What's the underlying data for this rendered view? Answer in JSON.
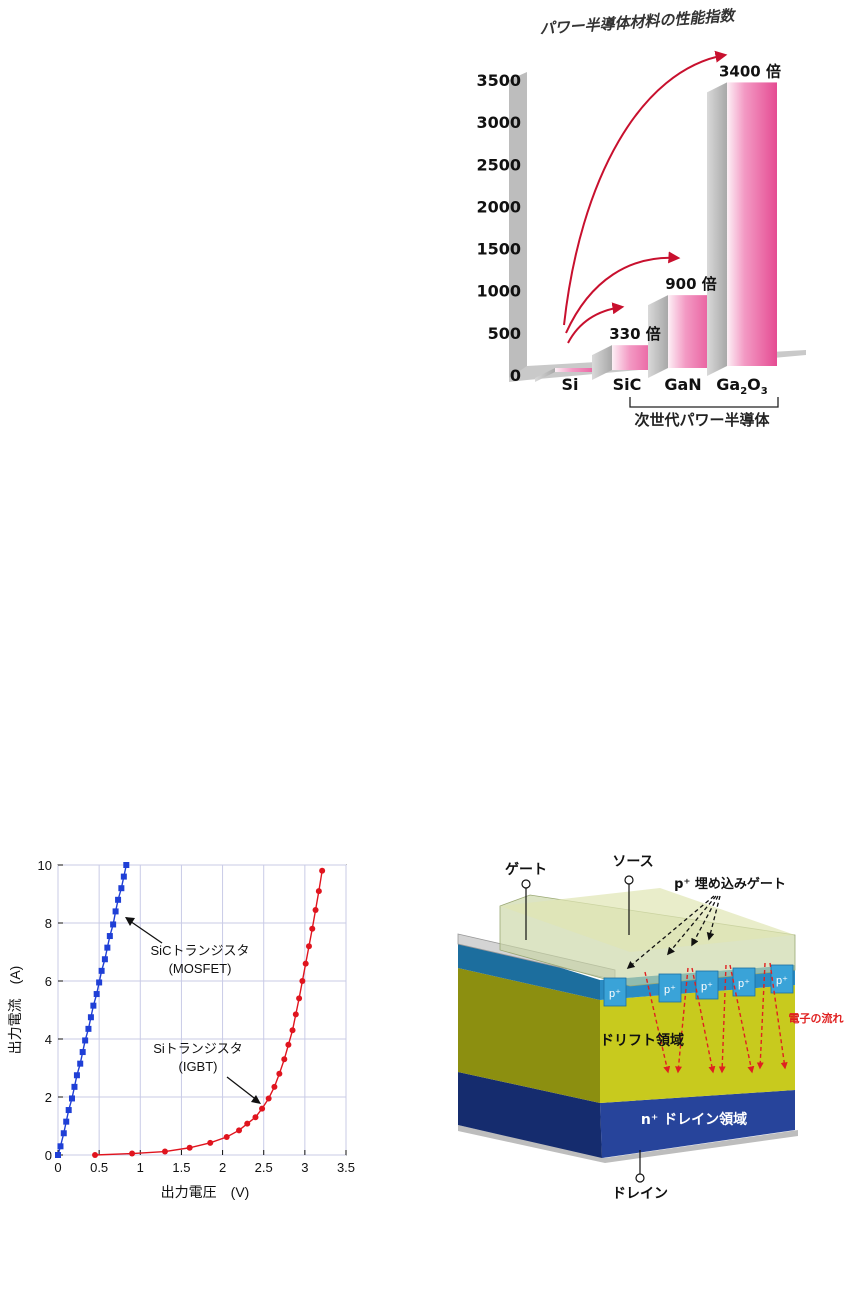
{
  "chart_data": [
    {
      "type": "bar",
      "title": "パワー半導体材料の性能指数",
      "categories": [
        "Si",
        "SiC",
        "GaN",
        "Ga2O3"
      ],
      "category_labels": [
        {
          "main": "Si",
          "sub": ""
        },
        {
          "main": "SiC",
          "sub": ""
        },
        {
          "main": "GaN",
          "sub": ""
        },
        {
          "main": "Ga",
          "sub": "2",
          "main2": "O",
          "sub2": "3"
        }
      ],
      "values": [
        1,
        330,
        900,
        3400
      ],
      "data_labels": [
        "",
        "330 倍",
        "900 倍",
        "3400 倍"
      ],
      "yticks": [
        "0",
        "500",
        "1000",
        "1500",
        "2000",
        "2500",
        "3000",
        "3500"
      ],
      "ylim": [
        0,
        3500
      ],
      "bracket_label": "次世代パワー半導体",
      "colors": {
        "bar": "#e8559a",
        "wall": "#b9b9b9"
      }
    },
    {
      "type": "line",
      "xlabel": "出力電圧　(V)",
      "ylabel": "出力電流　(A)",
      "xlim": [
        0,
        3.5
      ],
      "ylim": [
        0,
        10
      ],
      "xticks": [
        "0",
        "0.5",
        "1",
        "1.5",
        "2",
        "2.5",
        "3",
        "3.5"
      ],
      "yticks": [
        "0",
        "2",
        "4",
        "6",
        "8",
        "10"
      ],
      "grid": true,
      "series": [
        {
          "name": "SiCトランジスタ\n(MOSFET)",
          "label_line1": "SiCトランジスタ",
          "label_line2": "(MOSFET)",
          "color": "#1f3fd6",
          "marker": "square",
          "x": [
            0,
            0.03,
            0.07,
            0.1,
            0.13,
            0.17,
            0.2,
            0.23,
            0.27,
            0.3,
            0.33,
            0.37,
            0.4,
            0.43,
            0.47,
            0.5,
            0.53,
            0.57,
            0.6,
            0.63,
            0.67,
            0.7,
            0.73,
            0.77,
            0.8,
            0.83
          ],
          "y": [
            0,
            0.3,
            0.75,
            1.15,
            1.55,
            1.95,
            2.35,
            2.75,
            3.15,
            3.55,
            3.95,
            4.35,
            4.75,
            5.15,
            5.55,
            5.95,
            6.35,
            6.75,
            7.15,
            7.55,
            7.95,
            8.4,
            8.8,
            9.2,
            9.6,
            10.0
          ]
        },
        {
          "name": "Siトランジスタ\n(IGBT)",
          "label_line1": "Siトランジスタ",
          "label_line2": "(IGBT)",
          "color": "#e0141e",
          "marker": "circle",
          "x": [
            0.45,
            0.9,
            1.3,
            1.6,
            1.85,
            2.05,
            2.2,
            2.3,
            2.4,
            2.48,
            2.56,
            2.63,
            2.69,
            2.75,
            2.8,
            2.85,
            2.89,
            2.93,
            2.97,
            3.01,
            3.05,
            3.09,
            3.13,
            3.17,
            3.21
          ],
          "y": [
            0,
            0.05,
            0.12,
            0.25,
            0.42,
            0.62,
            0.85,
            1.08,
            1.3,
            1.6,
            1.95,
            2.35,
            2.8,
            3.3,
            3.8,
            4.3,
            4.85,
            5.4,
            6.0,
            6.6,
            7.2,
            7.8,
            8.45,
            9.1,
            9.8
          ]
        }
      ]
    }
  ],
  "diagram": {
    "labels": {
      "gate": "ゲート",
      "source": "ソース",
      "p_buried_gate": "p⁺ 埋め込みゲート",
      "drift": "ドリフト領域",
      "drain_region": "n⁺ ドレイン領域",
      "electron_flow": "電子の流れ",
      "drain": "ドレイン",
      "p_plus": "p⁺"
    },
    "colors": {
      "n_drain": "#27449b",
      "drift": "#c8ca1e",
      "top_layer": "#2a8cc4",
      "p_block": "#3aa3d8",
      "electron": "#e02020",
      "metal": "#c8c8c8"
    }
  }
}
